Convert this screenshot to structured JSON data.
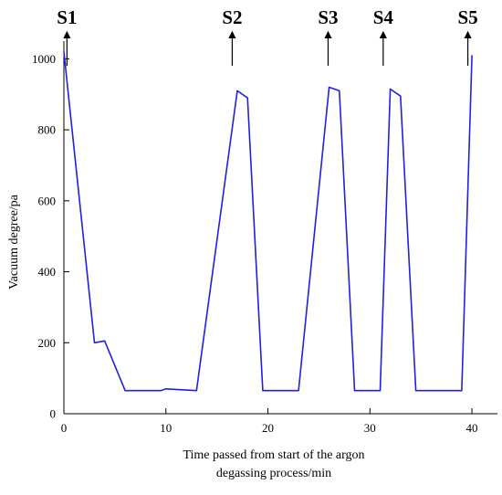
{
  "chart_data": {
    "type": "line",
    "title": "",
    "xlabel_lines": [
      "Time passed from start of the argon",
      "degassing process/min"
    ],
    "ylabel": "Vacuum degree/pa",
    "xlim": [
      0,
      42.5
    ],
    "ylim": [
      0,
      1050
    ],
    "x_ticks": [
      0,
      10,
      20,
      30,
      40
    ],
    "y_ticks": [
      0,
      200,
      400,
      600,
      800,
      1000
    ],
    "grid": false,
    "line_color": "#1f1fe6",
    "series": [
      {
        "x": [
          0,
          3,
          4,
          6,
          9.5,
          10,
          13,
          17,
          18,
          19.5,
          23,
          26,
          27,
          28.5,
          31,
          32,
          33,
          34.5,
          39,
          40
        ],
        "y": [
          1020,
          200,
          205,
          65,
          65,
          70,
          65,
          910,
          890,
          65,
          65,
          920,
          910,
          65,
          65,
          915,
          895,
          65,
          65,
          1010
        ]
      }
    ],
    "annotations": [
      {
        "label": "S1",
        "x": 0.3
      },
      {
        "label": "S2",
        "x": 16.5
      },
      {
        "label": "S3",
        "x": 25.9
      },
      {
        "label": "S4",
        "x": 31.3
      },
      {
        "label": "S5",
        "x": 39.6
      }
    ]
  }
}
